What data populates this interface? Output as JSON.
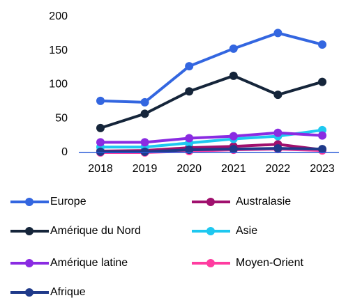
{
  "chart_data": {
    "type": "line",
    "categories": [
      "2018",
      "2019",
      "2020",
      "2021",
      "2022",
      "2023"
    ],
    "series": [
      {
        "name": "Europe",
        "color": "#3366e0",
        "values": [
          76,
          74,
          127,
          153,
          176,
          159
        ]
      },
      {
        "name": "Australasie",
        "color": "#a0106e",
        "values": [
          2,
          3,
          7,
          9,
          12,
          4
        ]
      },
      {
        "name": "Amérique du Nord",
        "color": "#15253a",
        "values": [
          36,
          57,
          90,
          113,
          85,
          104
        ]
      },
      {
        "name": "Asie",
        "color": "#1ec8f0",
        "values": [
          8,
          8,
          14,
          20,
          24,
          33
        ]
      },
      {
        "name": "Amérique latine",
        "color": "#8a2be2",
        "values": [
          15,
          15,
          21,
          24,
          29,
          25
        ]
      },
      {
        "name": "Moyen-Orient",
        "color": "#ff3ca0",
        "values": [
          0,
          0,
          2,
          4,
          5,
          3
        ]
      },
      {
        "name": "Afrique",
        "color": "#1f3a8a",
        "values": [
          1,
          1,
          4,
          5,
          6,
          5
        ]
      }
    ],
    "ylim": [
      0,
      200
    ],
    "yticks": [
      0,
      50,
      100,
      150,
      200
    ]
  }
}
